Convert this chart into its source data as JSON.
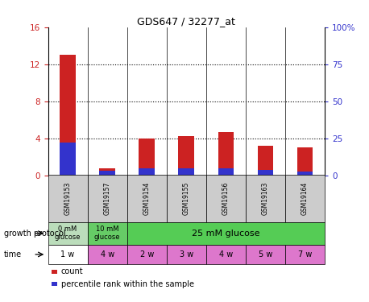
{
  "title": "GDS647 / 32277_at",
  "samples": [
    "GSM19153",
    "GSM19157",
    "GSM19154",
    "GSM19155",
    "GSM19156",
    "GSM19163",
    "GSM19164"
  ],
  "count_values": [
    13.0,
    0.7,
    4.0,
    4.2,
    4.7,
    3.2,
    3.0
  ],
  "percentile_values": [
    3.5,
    0.5,
    0.7,
    0.7,
    0.7,
    0.6,
    0.4
  ],
  "left_ylim": [
    0,
    16
  ],
  "left_yticks": [
    0,
    4,
    8,
    12,
    16
  ],
  "right_ylim": [
    0,
    100
  ],
  "right_yticks": [
    0,
    25,
    50,
    75,
    100
  ],
  "right_yticklabels": [
    "0",
    "25",
    "50",
    "75",
    "100%"
  ],
  "bar_color_count": "#cc2222",
  "bar_color_pct": "#3333cc",
  "bar_width": 0.4,
  "growth_protocol_groups": [
    {
      "label": "0 mM\nglucose",
      "start": 0,
      "end": 1,
      "color": "#bbddbb"
    },
    {
      "label": "10 mM\nglucose",
      "start": 1,
      "end": 2,
      "color": "#66cc66"
    },
    {
      "label": "25 mM glucose",
      "start": 2,
      "end": 7,
      "color": "#55cc55"
    }
  ],
  "time_labels": [
    "1 w",
    "4 w",
    "2 w",
    "3 w",
    "4 w",
    "5 w",
    "7 w"
  ],
  "time_color": "#dd77cc",
  "time_color_first": "#ffffff",
  "legend_count_label": "count",
  "legend_pct_label": "percentile rank within the sample",
  "growth_protocol_text": "growth protocol",
  "time_text": "time",
  "axis_label_color_left": "#cc2222",
  "axis_label_color_right": "#3333cc",
  "sample_box_color": "#cccccc",
  "fig_bg_color": "#ffffff"
}
